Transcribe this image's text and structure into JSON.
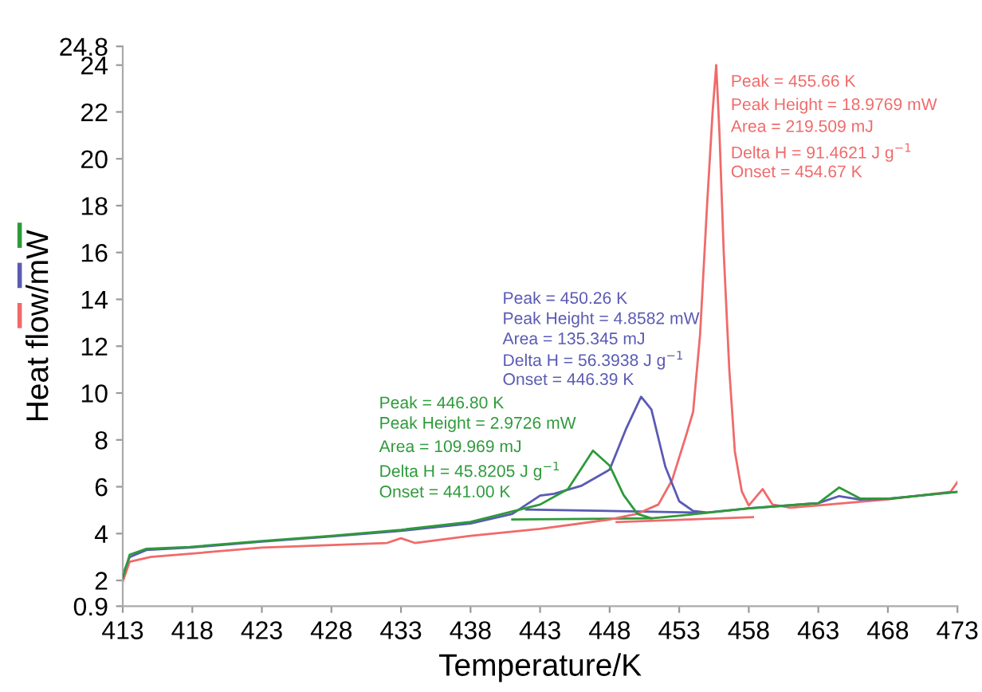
{
  "chart_data": {
    "type": "line",
    "xlabel": "Temperature/K",
    "ylabel": "Heat flow/mW",
    "xlim": [
      413,
      473
    ],
    "xticks": [
      413,
      418,
      423,
      428,
      433,
      438,
      443,
      448,
      453,
      458,
      463,
      468,
      473
    ],
    "ylim": [
      0.9,
      24.8
    ],
    "yticks": [
      0.9,
      2,
      4,
      6,
      8,
      10,
      12,
      14,
      16,
      18,
      20,
      22,
      24,
      24.8
    ],
    "grid": false,
    "legend": false,
    "marker": "none",
    "line_style": "solid",
    "series": [
      {
        "color": "#2e9a3a",
        "x": [
          413,
          413.5,
          414.7,
          417.8,
          423,
          428,
          433,
          438,
          443,
          445,
          446.8,
          448,
          449,
          450,
          451,
          453,
          458,
          463,
          464.5,
          466,
          468,
          473
        ],
        "values": [
          2.1,
          3.1,
          3.35,
          3.43,
          3.68,
          3.9,
          4.16,
          4.5,
          5.24,
          5.9,
          7.54,
          6.9,
          5.65,
          4.84,
          4.65,
          4.76,
          5.08,
          5.3,
          5.97,
          5.5,
          5.49,
          5.78
        ]
      },
      {
        "color": "#5a5ab4",
        "x": [
          413,
          413.5,
          414.7,
          417.8,
          423,
          428,
          433,
          438,
          441,
          443,
          444,
          446,
          448,
          449.2,
          450.26,
          451,
          452,
          453,
          454,
          455,
          458,
          463,
          464.5,
          466,
          468,
          473
        ],
        "values": [
          2.25,
          3.0,
          3.3,
          3.4,
          3.66,
          3.88,
          4.12,
          4.43,
          4.84,
          5.62,
          5.7,
          6.05,
          6.73,
          8.5,
          9.84,
          9.3,
          6.86,
          5.38,
          4.97,
          4.9,
          5.08,
          5.3,
          5.6,
          5.45,
          5.49,
          5.78
        ]
      },
      {
        "color": "#f06a6a",
        "x": [
          413,
          413.5,
          415,
          423,
          432,
          433,
          434,
          438,
          443,
          448,
          450,
          451.5,
          452.5,
          453.5,
          454,
          454.5,
          455,
          455.4,
          455.66,
          455.9,
          456.2,
          456.6,
          457,
          457.5,
          458,
          459,
          459.7,
          461,
          468,
          472.5,
          473
        ],
        "values": [
          1.95,
          2.8,
          3.0,
          3.4,
          3.6,
          3.8,
          3.6,
          3.9,
          4.2,
          4.6,
          4.85,
          5.24,
          6.3,
          8.2,
          9.2,
          12.5,
          18,
          22,
          24,
          21,
          16,
          11,
          7.5,
          5.8,
          5.2,
          5.9,
          5.24,
          5.1,
          5.46,
          5.78,
          6.2
        ]
      },
      {
        "color": "#2e9a3a",
        "x": [
          441,
          451
        ],
        "values": [
          4.6,
          4.65
        ]
      },
      {
        "color": "#5a5ab4",
        "x": [
          442,
          454.8
        ],
        "values": [
          5.03,
          4.89
        ]
      },
      {
        "color": "#f06a6a",
        "x": [
          448.5,
          458.3
        ],
        "values": [
          4.49,
          4.7
        ]
      }
    ],
    "annotations": [
      "Peak = 446.80 K",
      "Peak Height = 2.9726 mW",
      "Area = 109.969 mJ",
      "Delta H = 45.8205 J g$^{−1}$",
      "Onset = 441.00 K",
      "Peak = 450.26 K",
      "Peak Height = 4.8582 mW",
      "Area = 135.345 mJ",
      "Delta H = 56.3938 J g$^{−1}$",
      "Onset = 446.39 K",
      "Peak = 455.66 K",
      "Peak Height = 18.9769 mW",
      "Area = 219.509 mJ",
      "Delta H = 91.4621 J g$^{−1}$",
      "Onset = 454.67 K"
    ]
  }
}
